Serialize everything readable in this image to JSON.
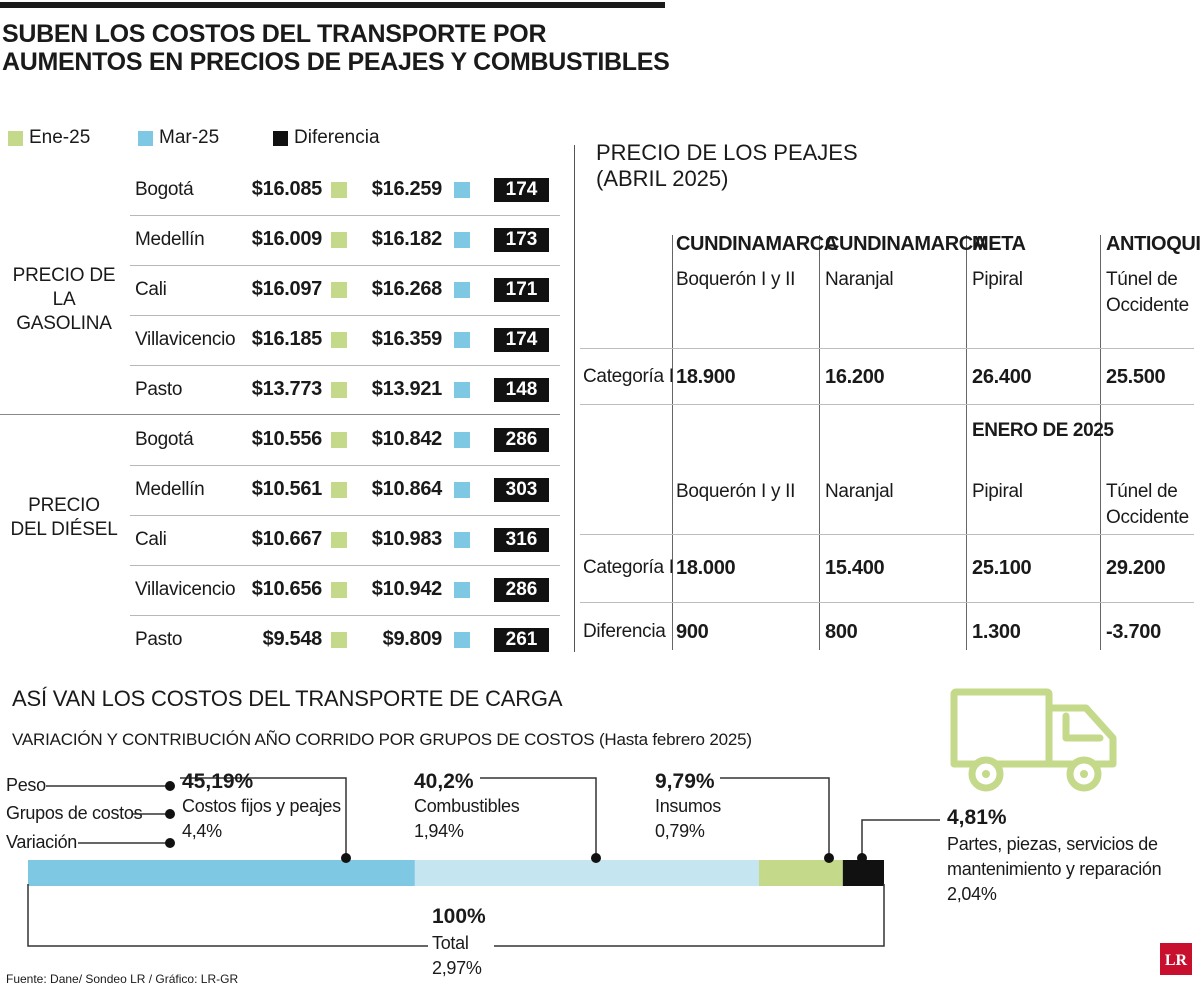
{
  "title": {
    "line1": "SUBEN LOS COSTOS DEL TRANSPORTE POR",
    "line2": "AUMENTOS EN PRECIOS DE PEAJES Y COMBUSTIBLES"
  },
  "legend": [
    {
      "label": "Ene-25",
      "color": "#c4d98a"
    },
    {
      "label": "Mar-25",
      "color": "#7ec8e3"
    },
    {
      "label": "Diferencia",
      "color": "#111111"
    }
  ],
  "gasoline": {
    "label_line1": "PRECIO DE",
    "label_line2": "LA GASOLINA",
    "rows": [
      {
        "city": "Bogotá",
        "jan": "$16.085",
        "mar": "$16.259",
        "diff": "174"
      },
      {
        "city": "Medellín",
        "jan": "$16.009",
        "mar": "$16.182",
        "diff": "173"
      },
      {
        "city": "Cali",
        "jan": "$16.097",
        "mar": "$16.268",
        "diff": "171"
      },
      {
        "city": "Villavicencio",
        "jan": "$16.185",
        "mar": "$16.359",
        "diff": "174"
      },
      {
        "city": "Pasto",
        "jan": "$13.773",
        "mar": "$13.921",
        "diff": "148"
      }
    ]
  },
  "diesel": {
    "label_line1": "PRECIO",
    "label_line2": "DEL DIÉSEL",
    "rows": [
      {
        "city": "Bogotá",
        "jan": "$10.556",
        "mar": "$10.842",
        "diff": "286"
      },
      {
        "city": "Medellín",
        "jan": "$10.561",
        "mar": "$10.864",
        "diff": "303"
      },
      {
        "city": "Cali",
        "jan": "$10.667",
        "mar": "$10.983",
        "diff": "316"
      },
      {
        "city": "Villavicencio",
        "jan": "$10.656",
        "mar": "$10.942",
        "diff": "286"
      },
      {
        "city": "Pasto",
        "jan": "$9.548",
        "mar": "$9.809",
        "diff": "261"
      }
    ]
  },
  "tolls": {
    "title_line1": "PRECIO DE LOS PEAJES",
    "title_line2": "(ABRIL 2025)",
    "january_label": "ENERO DE 2025",
    "row_category": "Categoría I",
    "row_difference": "Diferencia",
    "columns": [
      {
        "department": "CUNDINAMARCA",
        "toll_line1": "Boquerón I y II",
        "toll_line2": "",
        "april": "18.900",
        "january": "18.000",
        "difference": "900"
      },
      {
        "department": "CUNDINAMARCA",
        "toll_line1": "Naranjal",
        "toll_line2": "",
        "april": "16.200",
        "january": "15.400",
        "difference": "800"
      },
      {
        "department": "META",
        "toll_line1": "Pipiral",
        "toll_line2": "",
        "april": "26.400",
        "january": "25.100",
        "difference": "1.300"
      },
      {
        "department": "ANTIOQUIA",
        "toll_line1": "Túnel de",
        "toll_line2": "Occidente",
        "april": "25.500",
        "january": "29.200",
        "difference": "-3.700"
      }
    ]
  },
  "cargo": {
    "title": "ASÍ VAN LOS COSTOS DEL TRANSPORTE DE CARGA",
    "subtitle": "VARIACIÓN Y CONTRIBUCIÓN AÑO CORRIDO POR GRUPOS DE COSTOS (Hasta febrero 2025)",
    "label_peso": "Peso",
    "label_grupos": "Grupos de costos",
    "label_variacion": "Variación",
    "total_weight": "100%",
    "total_label": "Total",
    "total_variation": "2,97%",
    "truck_icon": "truck-icon",
    "source": "Fuente: Dane/ Sondeo LR / Gráfico: LR-GR",
    "logo": "LR"
  },
  "chart_data": {
    "type": "bar",
    "orientation": "horizontal-stacked",
    "categories": [
      "Costos fijos y peajes",
      "Combustibles",
      "Insumos",
      "Partes, piezas, servicios de mantenimiento y reparación"
    ],
    "weights": [
      45.19,
      40.2,
      9.79,
      4.81
    ],
    "weight_labels": [
      "45,19%",
      "40,2%",
      "9,79%",
      "4,81%"
    ],
    "variations": [
      4.4,
      1.94,
      0.79,
      2.04
    ],
    "variation_labels": [
      "4,4%",
      "1,94%",
      "0,79%",
      "2,04%"
    ],
    "colors": [
      "#7ec8e3",
      "#c5e6f1",
      "#c4d98a",
      "#111111"
    ],
    "total_weight": 100,
    "total_variation": 2.97
  }
}
